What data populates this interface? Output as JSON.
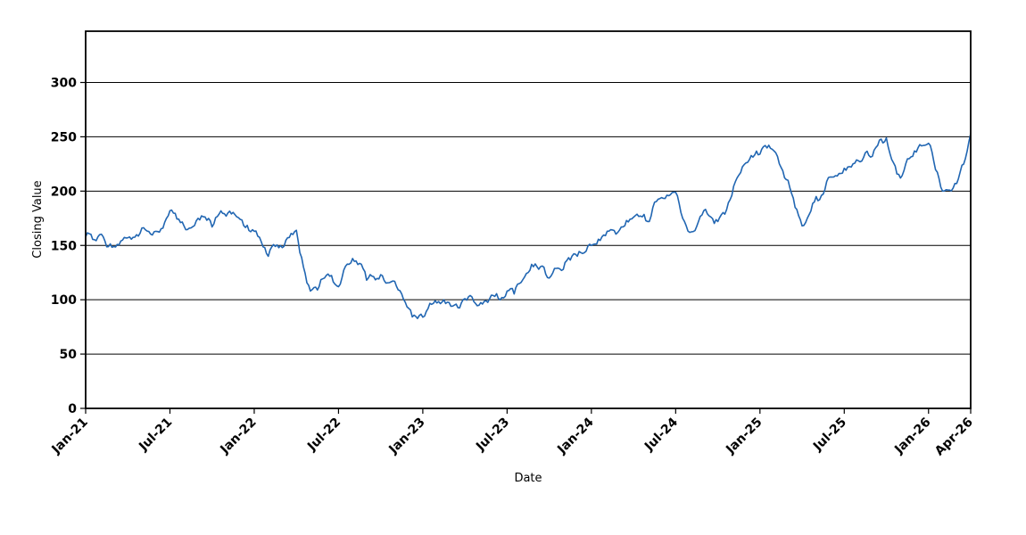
{
  "chart_data": {
    "type": "line",
    "title": "",
    "xlabel": "Date",
    "ylabel": "Closing Value",
    "grid": "horizontal-only",
    "legend": "none",
    "plot_background": "#ffffff",
    "grid_color": "#000000",
    "line_color": "#2166b2",
    "ylim": [
      0,
      345
    ],
    "y_ticks": [
      0,
      50,
      100,
      150,
      200,
      250,
      300
    ],
    "x_axis_unit": "months since Jan-21",
    "xlim_months": [
      0,
      63
    ],
    "x_ticks": [
      {
        "month": 0,
        "label": "Jan-21"
      },
      {
        "month": 6,
        "label": "Jul-21"
      },
      {
        "month": 12,
        "label": "Jan-22"
      },
      {
        "month": 18,
        "label": "Jul-22"
      },
      {
        "month": 24,
        "label": "Jan-23"
      },
      {
        "month": 30,
        "label": "Jul-23"
      },
      {
        "month": 36,
        "label": "Jan-24"
      },
      {
        "month": 42,
        "label": "Jul-24"
      },
      {
        "month": 48,
        "label": "Jan-25"
      },
      {
        "month": 54,
        "label": "Jul-25"
      },
      {
        "month": 60,
        "label": "Jan-26"
      },
      {
        "month": 63,
        "label": "Apr-26"
      }
    ],
    "series": [
      {
        "name": "Closing Value",
        "sampling": "monthly anchor values estimated from noisy daily line, Jan-21 through Apr-26",
        "months": [
          "Jan-21",
          "Feb-21",
          "Mar-21",
          "Apr-21",
          "May-21",
          "Jun-21",
          "Jul-21",
          "Aug-21",
          "Sep-21",
          "Oct-21",
          "Nov-21",
          "Dec-21",
          "Jan-22",
          "Feb-22",
          "Mar-22",
          "Apr-22",
          "May-22",
          "Jun-22",
          "Jul-22",
          "Aug-22",
          "Sep-22",
          "Oct-22",
          "Nov-22",
          "Dec-22",
          "Jan-23",
          "Feb-23",
          "Mar-23",
          "Apr-23",
          "May-23",
          "Jun-23",
          "Jul-23",
          "Aug-23",
          "Sep-23",
          "Oct-23",
          "Nov-23",
          "Dec-23",
          "Jan-24",
          "Feb-24",
          "Mar-24",
          "Apr-24",
          "May-24",
          "Jun-24",
          "Jul-24",
          "Aug-24",
          "Sep-24",
          "Oct-24",
          "Nov-24",
          "Dec-24",
          "Jan-25",
          "Feb-25",
          "Mar-25",
          "Apr-25",
          "May-25",
          "Jun-25",
          "Jul-25",
          "Aug-25",
          "Sep-25",
          "Oct-25",
          "Nov-25",
          "Dec-25",
          "Jan-26",
          "Feb-26",
          "Mar-26",
          "Apr-26"
        ],
        "values": [
          158,
          160,
          149,
          157,
          166,
          163,
          182,
          168,
          175,
          167,
          177,
          174,
          163,
          140,
          148,
          164,
          108,
          120,
          112,
          138,
          118,
          123,
          117,
          92,
          84,
          97,
          94,
          101,
          95,
          104,
          108,
          116,
          133,
          120,
          128,
          140,
          150,
          159,
          164,
          176,
          172,
          194,
          199,
          162,
          182,
          172,
          196,
          226,
          234,
          237,
          210,
          168,
          195,
          213,
          221,
          228,
          232,
          249,
          212,
          237,
          244,
          200,
          207,
          253
        ]
      }
    ],
    "style_hints": {
      "noise_amplitude": 7,
      "noise_seed": 42,
      "x_tick_rotation_deg": -45
    }
  }
}
